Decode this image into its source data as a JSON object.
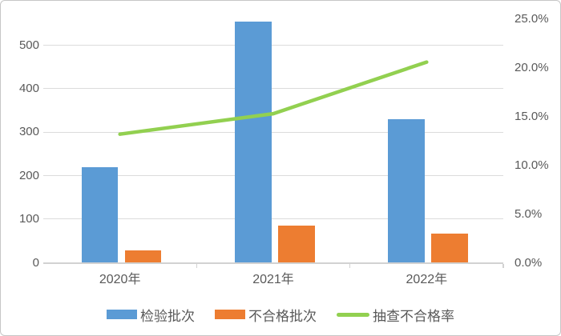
{
  "chart_data": {
    "type": "combo-bar-line",
    "categories": [
      "2020年",
      "2021年",
      "2022年"
    ],
    "series": [
      {
        "name": "检验批次",
        "type": "bar",
        "axis": "primary",
        "color": "#5B9BD5",
        "values": [
          220,
          555,
          330
        ]
      },
      {
        "name": "不合格批次",
        "type": "bar",
        "axis": "primary",
        "color": "#ED7D31",
        "values": [
          29,
          85,
          68
        ]
      },
      {
        "name": "抽查不合格率",
        "type": "line",
        "axis": "secondary",
        "color": "#92D050",
        "values": [
          13.2,
          15.3,
          20.6
        ],
        "unit": "%"
      }
    ],
    "primary_axis": {
      "side": "left",
      "min": 0,
      "max": 560,
      "major_unit": 100,
      "tick_labels": [
        "0",
        "100",
        "200",
        "300",
        "400",
        "500"
      ]
    },
    "secondary_axis": {
      "side": "right",
      "min": 0,
      "max": 25,
      "major_unit": 5,
      "tick_labels": [
        "0.0%",
        "5.0%",
        "10.0%",
        "15.0%",
        "20.0%",
        "25.0%"
      ]
    },
    "grid": "horizontal",
    "legend_position": "bottom"
  },
  "colors": {
    "background": "#FFFFFF",
    "border": "#C6C6C6",
    "gridline": "#DBDBDB",
    "axis_line": "#D2D2D2",
    "tick_text": "#595959",
    "bar_blue": "#5B9BD5",
    "bar_orange": "#ED7D31",
    "line_green": "#92D050"
  }
}
